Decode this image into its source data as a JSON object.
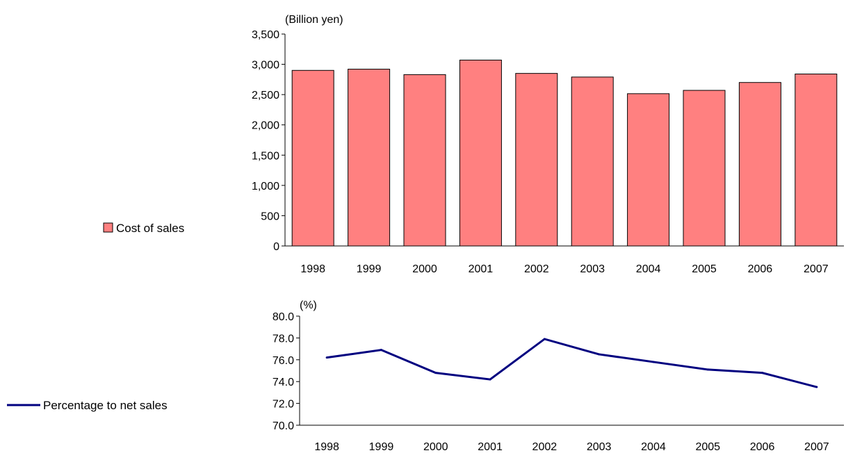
{
  "chart_data": [
    {
      "type": "bar",
      "unit_label": "(Billion yen)",
      "categories": [
        "1998",
        "1999",
        "2000",
        "2001",
        "2002",
        "2003",
        "2004",
        "2005",
        "2006",
        "2007"
      ],
      "series": [
        {
          "name": "Cost of sales",
          "values": [
            2900,
            2920,
            2830,
            3070,
            2850,
            2790,
            2515,
            2570,
            2700,
            2840
          ]
        }
      ],
      "ylim": [
        0,
        3500
      ],
      "yticks": [
        0,
        500,
        1000,
        1500,
        2000,
        2500,
        3000,
        3500
      ],
      "ytick_labels": [
        "0",
        "500",
        "1,000",
        "1,500",
        "2,000",
        "2,500",
        "3,000",
        "3,500"
      ],
      "grid": false,
      "legend_position": "left",
      "color": "#FF8080"
    },
    {
      "type": "line",
      "unit_label": "(%)",
      "categories": [
        "1998",
        "1999",
        "2000",
        "2001",
        "2002",
        "2003",
        "2004",
        "2005",
        "2006",
        "2007"
      ],
      "series": [
        {
          "name": "Percentage to net sales",
          "values": [
            76.2,
            76.9,
            74.8,
            74.2,
            77.9,
            76.5,
            75.8,
            75.1,
            74.8,
            73.5
          ]
        }
      ],
      "ylim": [
        70,
        80
      ],
      "yticks": [
        70,
        72,
        74,
        76,
        78,
        80
      ],
      "ytick_labels": [
        "70.0",
        "72.0",
        "74.0",
        "76.0",
        "78.0",
        "80.0"
      ],
      "grid": false,
      "legend_position": "left",
      "color": "#000080"
    }
  ]
}
